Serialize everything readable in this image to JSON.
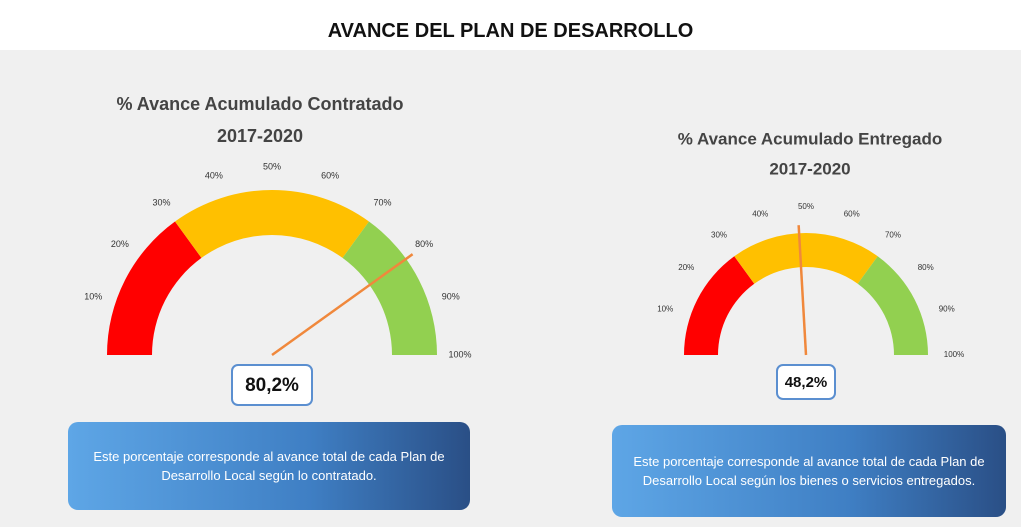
{
  "title": "AVANCE DEL PLAN DE DESARROLLO",
  "chart_data": [
    {
      "type": "gauge",
      "title": "% Avance Acumulado Contratado",
      "subtitle": "2017-2020",
      "value": 80.2,
      "value_label": "80,2%",
      "needle_color": "#f0883c",
      "ylim": [
        0,
        100
      ],
      "yticks": [
        {
          "value": 10,
          "label": "10%"
        },
        {
          "value": 20,
          "label": "20%"
        },
        {
          "value": 30,
          "label": "30%"
        },
        {
          "value": 40,
          "label": "40%"
        },
        {
          "value": 50,
          "label": "50%"
        },
        {
          "value": 60,
          "label": "60%"
        },
        {
          "value": 70,
          "label": "70%"
        },
        {
          "value": 80,
          "label": "80%"
        },
        {
          "value": 90,
          "label": "90%"
        },
        {
          "value": 100,
          "label": "100%"
        }
      ],
      "bands": [
        {
          "from": 0,
          "to": 30,
          "color": "#ff0000"
        },
        {
          "from": 30,
          "to": 70,
          "color": "#ffc000"
        },
        {
          "from": 70,
          "to": 100,
          "color": "#92d050"
        }
      ],
      "description": "Este porcentaje corresponde al avance total de cada Plan de Desarrollo Local según lo contratado."
    },
    {
      "type": "gauge",
      "title": "% Avance Acumulado Entregado",
      "subtitle": "2017-2020",
      "value": 48.2,
      "value_label": "48,2%",
      "needle_color": "#f0883c",
      "ylim": [
        0,
        100
      ],
      "yticks": [
        {
          "value": 10,
          "label": "10%"
        },
        {
          "value": 20,
          "label": "20%"
        },
        {
          "value": 30,
          "label": "30%"
        },
        {
          "value": 40,
          "label": "40%"
        },
        {
          "value": 50,
          "label": "50%"
        },
        {
          "value": 60,
          "label": "60%"
        },
        {
          "value": 70,
          "label": "70%"
        },
        {
          "value": 80,
          "label": "80%"
        },
        {
          "value": 90,
          "label": "90%"
        },
        {
          "value": 100,
          "label": "100%"
        }
      ],
      "bands": [
        {
          "from": 0,
          "to": 30,
          "color": "#ff0000"
        },
        {
          "from": 30,
          "to": 70,
          "color": "#ffc000"
        },
        {
          "from": 70,
          "to": 100,
          "color": "#92d050"
        }
      ],
      "description": "Este porcentaje corresponde al avance total de cada Plan de Desarrollo Local según los bienes o servicios entregados."
    }
  ]
}
